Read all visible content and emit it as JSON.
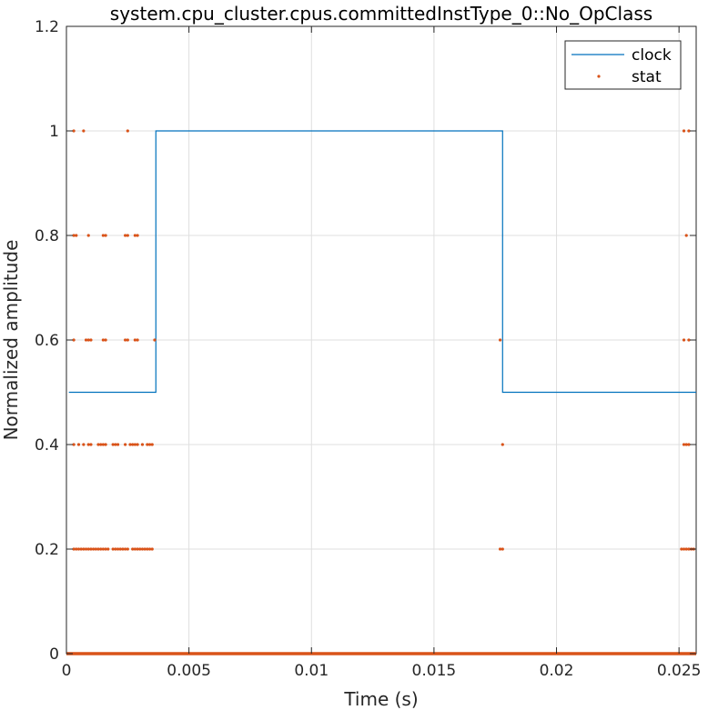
{
  "chart_data": {
    "type": "line",
    "title": "system.cpu_cluster.cpus.committedInstType_0::No_OpClass",
    "xlabel": "Time (s)",
    "ylabel": "Normalized amplitude",
    "xlim": [
      0,
      0.0257
    ],
    "ylim": [
      0,
      1.2
    ],
    "xticks": [
      0,
      0.005,
      0.01,
      0.015,
      0.02,
      0.025
    ],
    "xtick_labels": [
      "0",
      "0.005",
      "0.01",
      "0.015",
      "0.02",
      "0.025"
    ],
    "yticks": [
      0,
      0.2,
      0.4,
      0.6,
      0.8,
      1,
      1.2
    ],
    "ytick_labels": [
      "0",
      "0.2",
      "0.4",
      "0.6",
      "0.8",
      "1",
      "1.2"
    ],
    "grid": true,
    "legend_position": "top-right",
    "series": [
      {
        "name": "clock",
        "style": "line",
        "color": "#0072BD",
        "x": [
          0.0001,
          0.00365,
          0.00365,
          0.0178,
          0.0178,
          0.0257
        ],
        "y": [
          0.5,
          0.5,
          1.0,
          1.0,
          0.5,
          0.5
        ]
      },
      {
        "name": "stat",
        "style": "dots",
        "color": "#D95319",
        "points": [
          [
            0.0003,
            1.0
          ],
          [
            0.0007,
            1.0
          ],
          [
            0.0025,
            1.0
          ],
          [
            0.0252,
            1.0
          ],
          [
            0.0254,
            1.0
          ],
          [
            0.0003,
            0.8
          ],
          [
            0.0004,
            0.8
          ],
          [
            0.0009,
            0.8
          ],
          [
            0.0015,
            0.8
          ],
          [
            0.0016,
            0.8
          ],
          [
            0.0024,
            0.8
          ],
          [
            0.0025,
            0.8
          ],
          [
            0.0028,
            0.8
          ],
          [
            0.0029,
            0.8
          ],
          [
            0.0253,
            0.8
          ],
          [
            0.0003,
            0.6
          ],
          [
            0.0008,
            0.6
          ],
          [
            0.0009,
            0.6
          ],
          [
            0.001,
            0.6
          ],
          [
            0.0015,
            0.6
          ],
          [
            0.0016,
            0.6
          ],
          [
            0.0024,
            0.6
          ],
          [
            0.0025,
            0.6
          ],
          [
            0.0028,
            0.6
          ],
          [
            0.0029,
            0.6
          ],
          [
            0.0036,
            0.6
          ],
          [
            0.0177,
            0.6
          ],
          [
            0.0252,
            0.6
          ],
          [
            0.0254,
            0.6
          ],
          [
            0.0003,
            0.4
          ],
          [
            0.0005,
            0.4
          ],
          [
            0.0007,
            0.4
          ],
          [
            0.0009,
            0.4
          ],
          [
            0.001,
            0.4
          ],
          [
            0.0013,
            0.4
          ],
          [
            0.0014,
            0.4
          ],
          [
            0.0015,
            0.4
          ],
          [
            0.0016,
            0.4
          ],
          [
            0.0019,
            0.4
          ],
          [
            0.002,
            0.4
          ],
          [
            0.0021,
            0.4
          ],
          [
            0.0024,
            0.4
          ],
          [
            0.0026,
            0.4
          ],
          [
            0.0027,
            0.4
          ],
          [
            0.0028,
            0.4
          ],
          [
            0.0029,
            0.4
          ],
          [
            0.0031,
            0.4
          ],
          [
            0.0033,
            0.4
          ],
          [
            0.0034,
            0.4
          ],
          [
            0.0035,
            0.4
          ],
          [
            0.0178,
            0.4
          ],
          [
            0.0252,
            0.4
          ],
          [
            0.0253,
            0.4
          ],
          [
            0.0254,
            0.4
          ],
          [
            0.0003,
            0.2
          ],
          [
            0.0004,
            0.2
          ],
          [
            0.0005,
            0.2
          ],
          [
            0.0006,
            0.2
          ],
          [
            0.0007,
            0.2
          ],
          [
            0.0008,
            0.2
          ],
          [
            0.0009,
            0.2
          ],
          [
            0.001,
            0.2
          ],
          [
            0.0011,
            0.2
          ],
          [
            0.0012,
            0.2
          ],
          [
            0.0013,
            0.2
          ],
          [
            0.0014,
            0.2
          ],
          [
            0.0015,
            0.2
          ],
          [
            0.0016,
            0.2
          ],
          [
            0.0017,
            0.2
          ],
          [
            0.0019,
            0.2
          ],
          [
            0.002,
            0.2
          ],
          [
            0.0021,
            0.2
          ],
          [
            0.0022,
            0.2
          ],
          [
            0.0023,
            0.2
          ],
          [
            0.0024,
            0.2
          ],
          [
            0.0025,
            0.2
          ],
          [
            0.0027,
            0.2
          ],
          [
            0.0028,
            0.2
          ],
          [
            0.0029,
            0.2
          ],
          [
            0.003,
            0.2
          ],
          [
            0.0031,
            0.2
          ],
          [
            0.0032,
            0.2
          ],
          [
            0.0033,
            0.2
          ],
          [
            0.0034,
            0.2
          ],
          [
            0.0035,
            0.2
          ],
          [
            0.0177,
            0.2
          ],
          [
            0.0178,
            0.2
          ],
          [
            0.0251,
            0.2
          ],
          [
            0.0252,
            0.2
          ],
          [
            0.0253,
            0.2
          ],
          [
            0.0254,
            0.2
          ],
          [
            0.0255,
            0.2
          ],
          [
            0.0256,
            0.2
          ]
        ],
        "baseline": {
          "y": 0,
          "x_start": 0,
          "x_end": 0.0257
        }
      }
    ]
  }
}
